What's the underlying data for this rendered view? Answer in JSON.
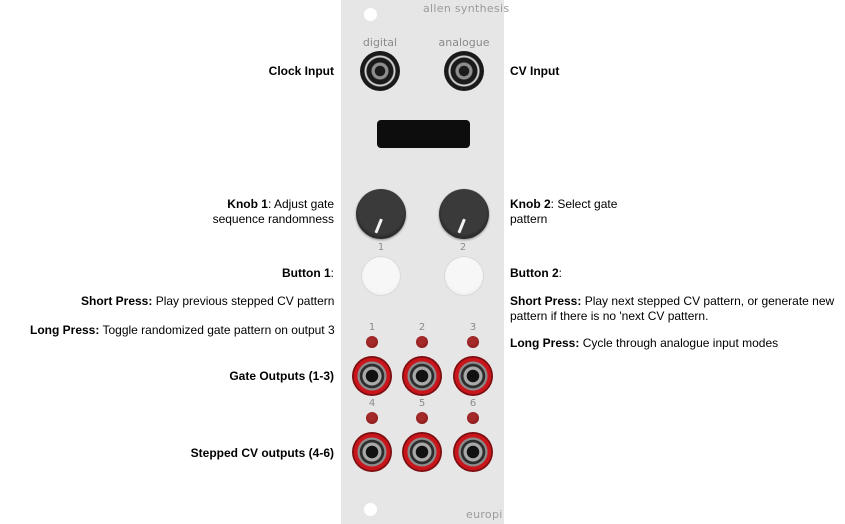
{
  "panel": {
    "brand_top": "allen synthesis",
    "brand_bottom": "europi",
    "jack_labels": [
      "digital",
      "analogue"
    ],
    "knob_labels": [
      "1",
      "2"
    ],
    "led_labels_top": [
      "1",
      "2",
      "3"
    ],
    "led_labels_bottom": [
      "4",
      "5",
      "6"
    ]
  },
  "left_labels": {
    "clock_input": "Clock Input",
    "knob1_title": "Knob 1",
    "knob1_line1": ": Adjust gate",
    "knob1_line2": "sequence randomness",
    "button1_title": "Button 1",
    "button1_colon": ":",
    "short_press_title": "Short Press:",
    "short_press_desc": " Play previous stepped CV pattern",
    "long_press_title": "Long Press:",
    "long_press_desc": " Toggle randomized gate pattern on output 3",
    "gate_outputs": "Gate Outputs (1-3)",
    "stepped_cv_outputs": "Stepped CV outputs (4-6)"
  },
  "right_labels": {
    "cv_input": "CV Input",
    "knob2_title": "Knob 2",
    "knob2_line1": ": Select gate",
    "knob2_line2": "pattern",
    "button2_title": "Button 2",
    "button2_colon": ":",
    "short_press_title": "Short Press:",
    "short_press_desc_line1": " Play next stepped CV pattern, or generate new",
    "short_press_desc_line2": "pattern if there is no 'next CV pattern.",
    "long_press_title": "Long Press:",
    "long_press_desc": " Cycle through analogue input modes"
  },
  "colors": {
    "panel": "#e6e6e6",
    "jack_red": "#c8141a",
    "led": "#8b1a1a",
    "display": "#0d0d0d"
  }
}
